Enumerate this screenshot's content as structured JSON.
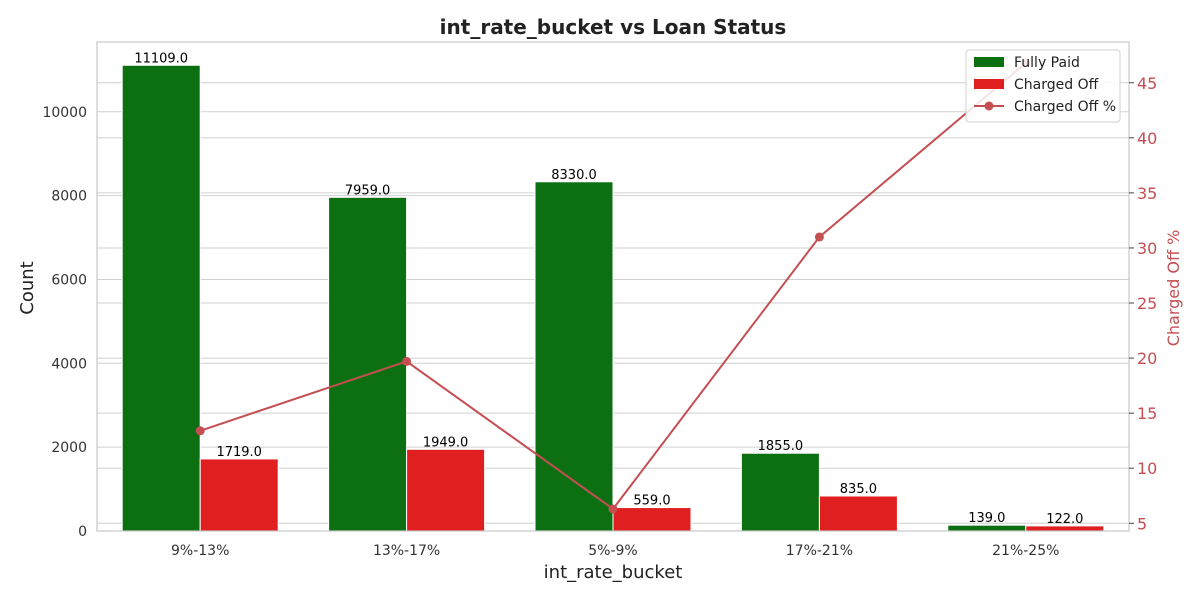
{
  "chart_data": {
    "type": "bar",
    "title": "int_rate_bucket vs Loan Status",
    "xlabel": "int_rate_bucket",
    "ylabel": "Count",
    "y2label": "Charged Off %",
    "categories": [
      "9%-13%",
      "13%-17%",
      "5%-9%",
      "17%-21%",
      "21%-25%"
    ],
    "series": [
      {
        "name": "Fully Paid",
        "values": [
          11109.0,
          7959.0,
          8330.0,
          1855.0,
          139.0
        ],
        "color": "#0c7012"
      },
      {
        "name": "Charged Off",
        "values": [
          1719.0,
          1949.0,
          559.0,
          835.0,
          122.0
        ],
        "color": "#e02020"
      }
    ],
    "line_series": {
      "name": "Charged Off %",
      "values": [
        13.4,
        19.7,
        6.3,
        31.0,
        46.8
      ],
      "color": "#c44e52"
    },
    "ylim": [
      0,
      11664
    ],
    "y2lim": [
      4.3,
      48.7
    ],
    "yticks": [
      0,
      2000,
      4000,
      6000,
      8000,
      10000
    ],
    "y2ticks": [
      5,
      10,
      15,
      20,
      25,
      30,
      35,
      40,
      45
    ],
    "grid": true,
    "legend_position": "top-right"
  }
}
